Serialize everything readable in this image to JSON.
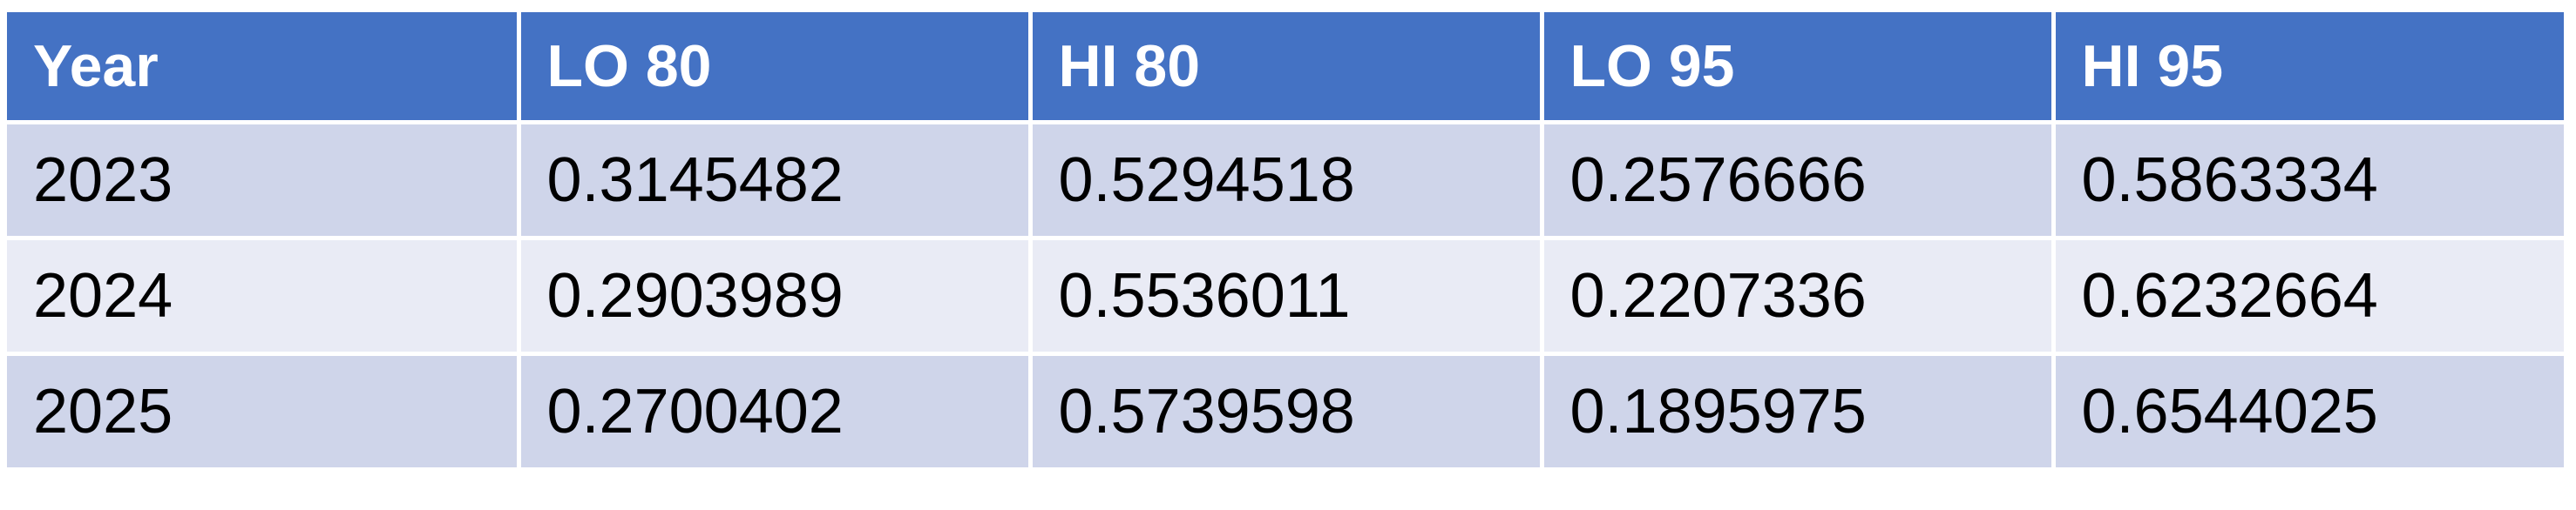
{
  "table": {
    "headers": [
      "Year",
      "LO 80",
      "HI 80",
      "LO 95",
      "HI 95"
    ],
    "rows": [
      [
        "2023",
        "0.3145482",
        "0.5294518",
        "0.2576666",
        "0.5863334"
      ],
      [
        "2024",
        "0.2903989",
        "0.5536011",
        "0.2207336",
        "0.6232664"
      ],
      [
        "2025",
        "0.2700402",
        "0.5739598",
        "0.1895975",
        "0.6544025"
      ]
    ]
  },
  "colors": {
    "header_bg": "#4472C4",
    "row_band_1": "#CFD5EA",
    "row_band_2": "#E9EBF5",
    "header_text": "#FFFFFF",
    "body_text": "#000000"
  }
}
